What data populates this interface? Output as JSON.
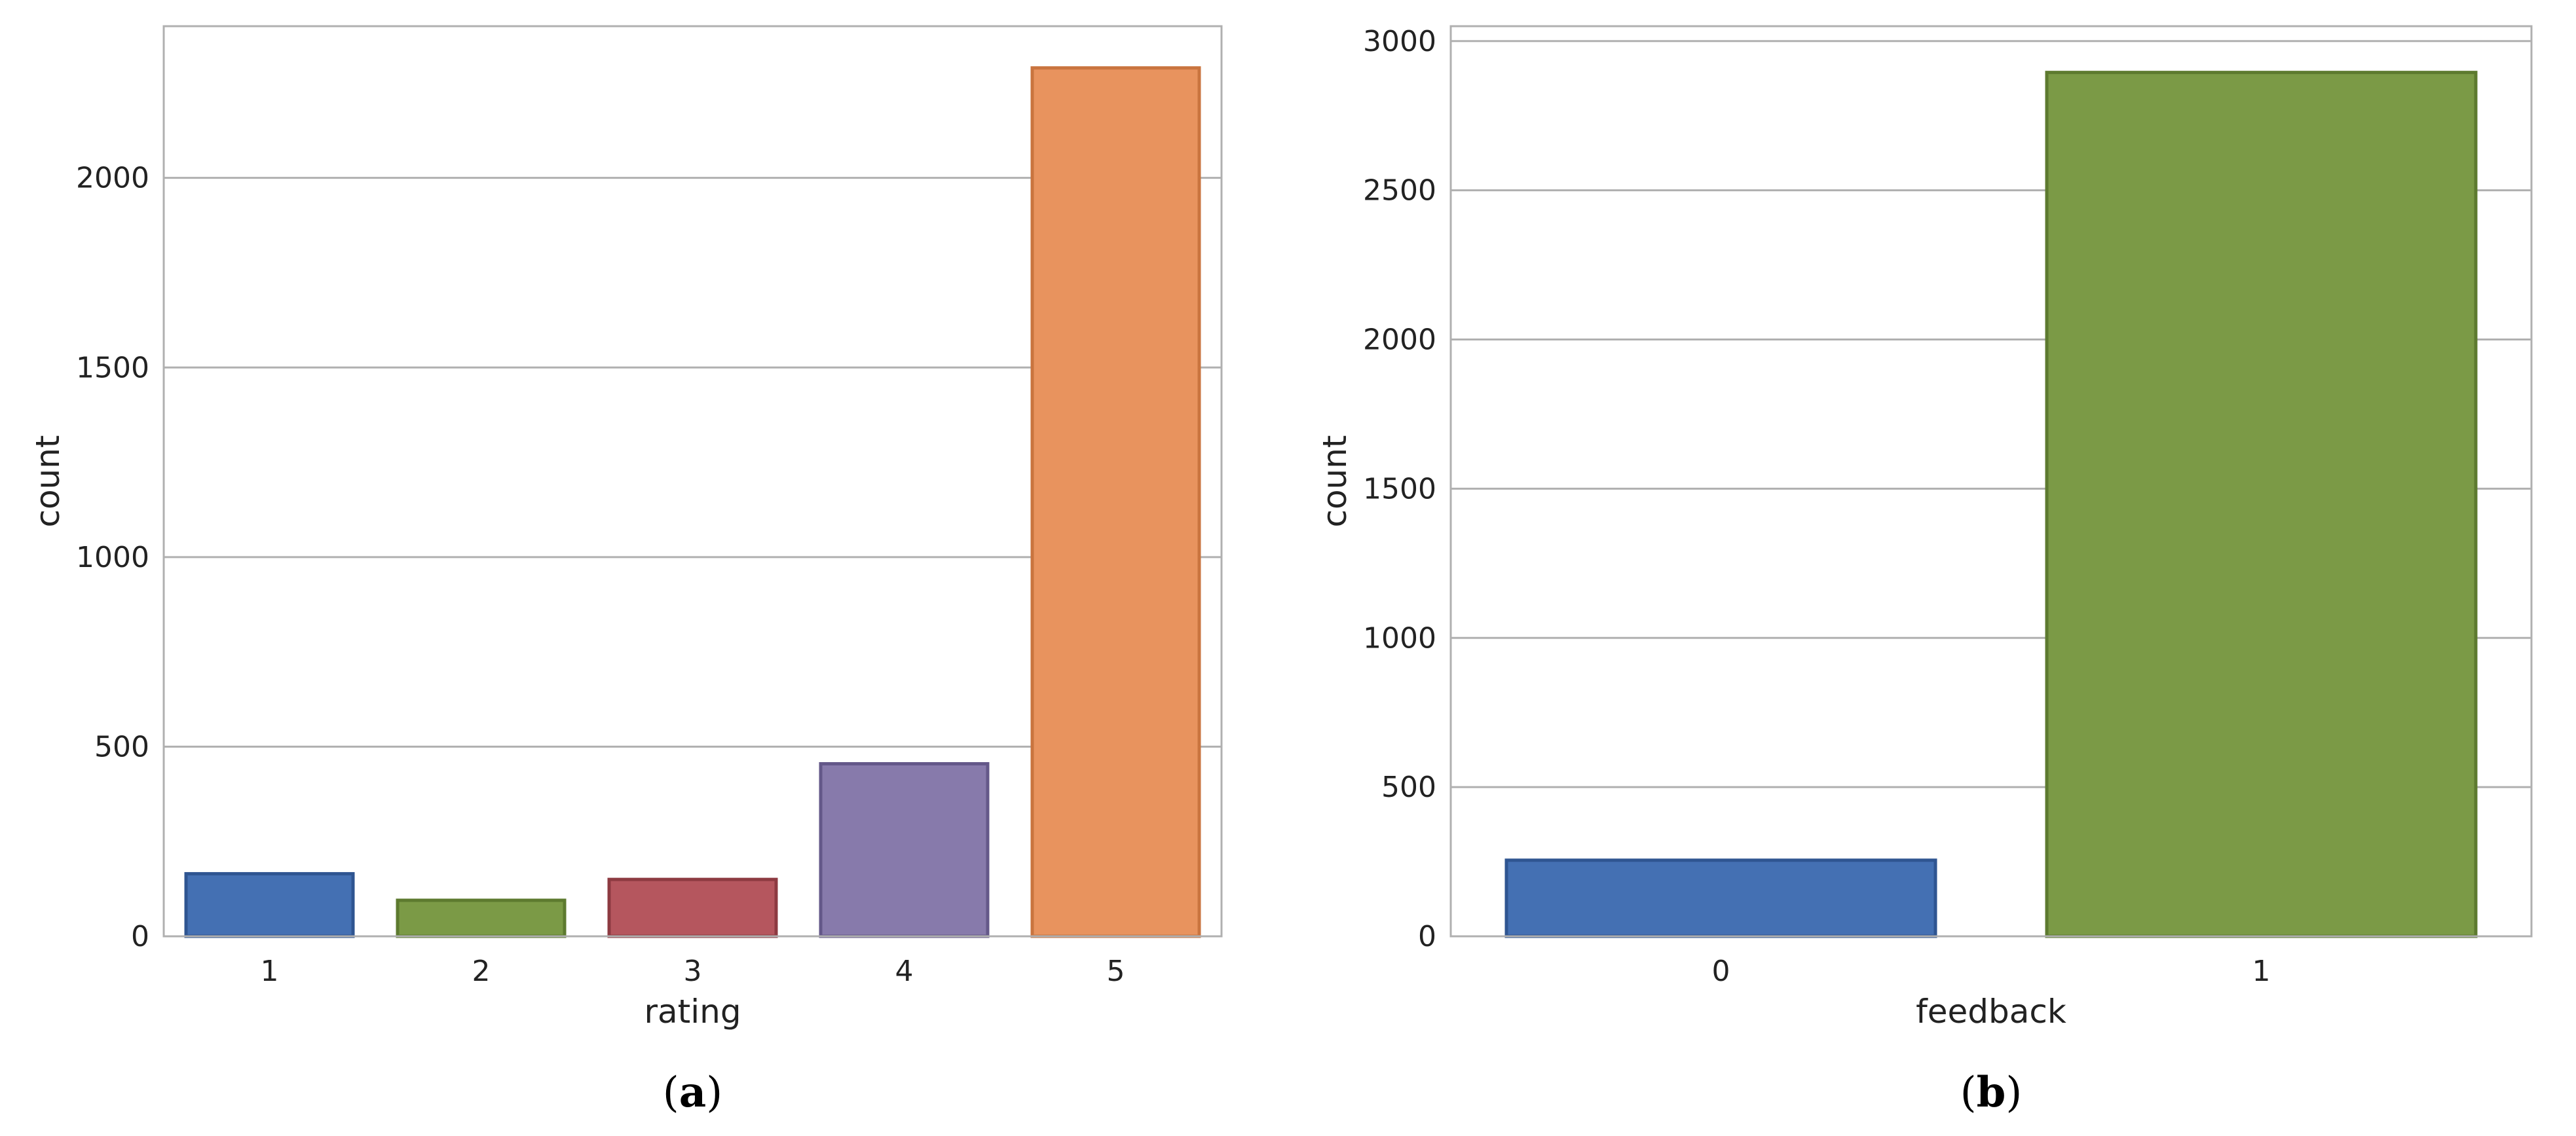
{
  "chart_data": [
    {
      "type": "bar",
      "panel_label": "a",
      "xlabel": "rating",
      "ylabel": "count",
      "categories": [
        "1",
        "2",
        "3",
        "4",
        "5"
      ],
      "values": [
        165,
        95,
        150,
        455,
        2290
      ],
      "colors": [
        "#4470b3",
        "#7b9a46",
        "#b5565e",
        "#877aab",
        "#e8935e"
      ],
      "edge_colors": [
        "#2f5591",
        "#5d7a2f",
        "#8d3a41",
        "#645889",
        "#c9743f"
      ],
      "ylim": [
        0,
        2400
      ],
      "yticks": [
        0,
        500,
        1000,
        1500,
        2000
      ],
      "grid": true
    },
    {
      "type": "bar",
      "panel_label": "b",
      "xlabel": "feedback",
      "ylabel": "count",
      "categories": [
        "0",
        "1"
      ],
      "values": [
        255,
        2895
      ],
      "colors": [
        "#4470b3",
        "#7b9a46"
      ],
      "edge_colors": [
        "#2f5591",
        "#5d7a2f"
      ],
      "ylim": [
        0,
        3050
      ],
      "yticks": [
        0,
        500,
        1000,
        1500,
        2000,
        2500,
        3000
      ],
      "grid": true
    }
  ]
}
